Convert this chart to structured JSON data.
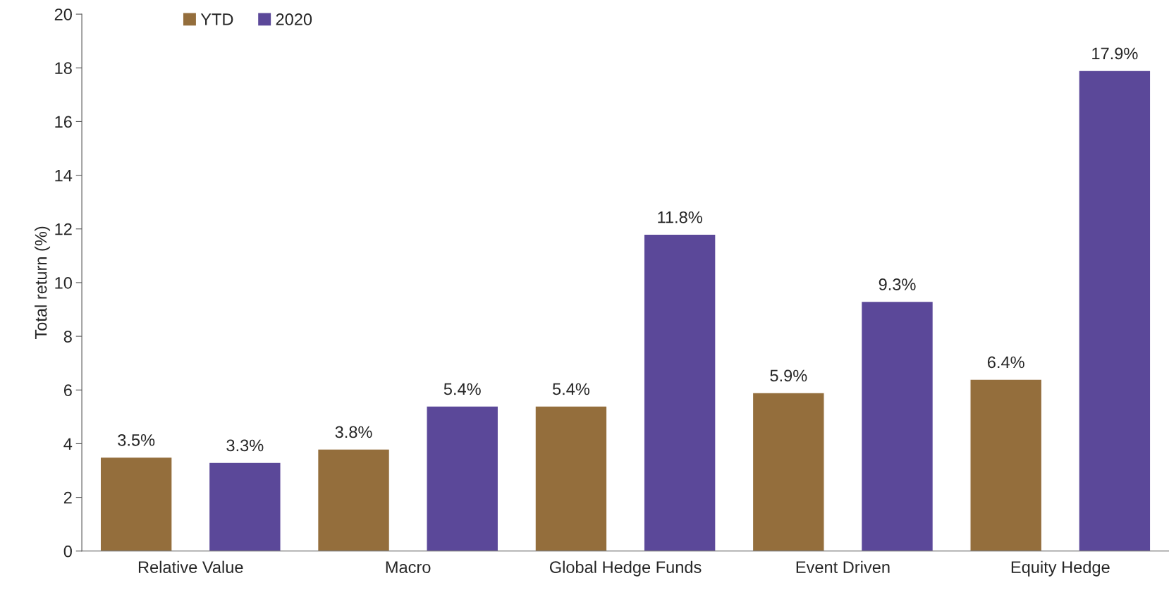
{
  "chart_data": {
    "type": "bar",
    "ylabel": "Total return (%)",
    "categories": [
      "Relative Value",
      "Macro",
      "Global Hedge Funds",
      "Event Driven",
      "Equity Hedge"
    ],
    "series": [
      {
        "name": "YTD",
        "color": "#946e3c",
        "values": [
          3.5,
          3.8,
          5.4,
          5.9,
          6.4
        ],
        "value_labels": [
          "3.5%",
          "3.8%",
          "5.4%",
          "5.9%",
          "6.4%"
        ]
      },
      {
        "name": "2020",
        "color": "#5b4899",
        "values": [
          3.3,
          5.4,
          11.8,
          9.3,
          17.9
        ],
        "value_labels": [
          "3.3%",
          "5.4%",
          "11.8%",
          "9.3%",
          "17.9%"
        ]
      }
    ],
    "ylim": [
      0,
      20
    ],
    "yticks": [
      0,
      2,
      4,
      6,
      8,
      10,
      12,
      14,
      16,
      18,
      20
    ],
    "grid": false,
    "legend": "top left"
  }
}
